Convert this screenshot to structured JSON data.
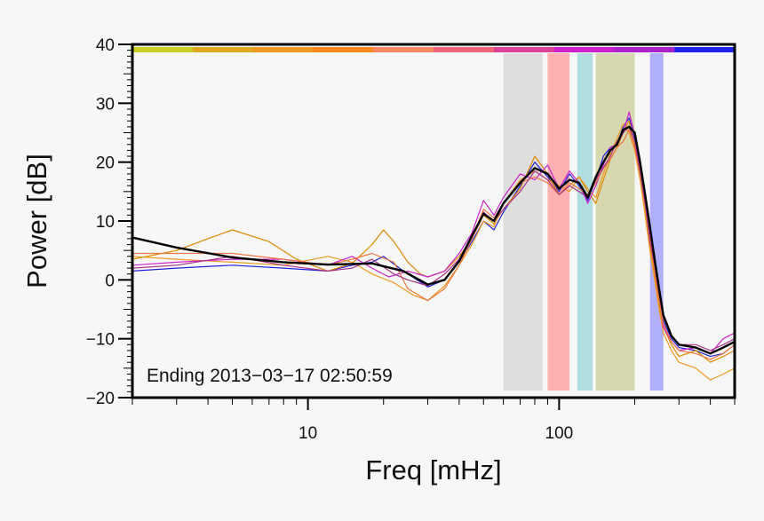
{
  "chart_data": {
    "type": "line",
    "xlabel": "Freq [mHz]",
    "ylabel": "Power [dB]",
    "xscale": "log",
    "xlim": [
      2,
      500
    ],
    "ylim": [
      -20,
      40
    ],
    "xticks": [
      10,
      100
    ],
    "xtick_labels": [
      "10",
      "100"
    ],
    "yticks": [
      -20,
      -10,
      0,
      10,
      20,
      30,
      40
    ],
    "ytick_labels": [
      "−20",
      "−10",
      "0",
      "10",
      "20",
      "30",
      "40"
    ],
    "grid": false,
    "annotation": "Ending 2013−03−17 02:50:59",
    "top_band_colors": [
      "#cccc22",
      "#ddaa22",
      "#ee9922",
      "#ff8822",
      "#ff8866",
      "#ee6677",
      "#dd4499",
      "#cc22cc",
      "#aa22cc",
      "#2222ee"
    ],
    "shaded_bands": [
      {
        "from": 60,
        "to": 86,
        "color": "#dedede"
      },
      {
        "from": 90,
        "to": 110,
        "color": "#ffb0b0"
      },
      {
        "from": 118,
        "to": 136,
        "color": "#b0dde0"
      },
      {
        "from": 140,
        "to": 200,
        "color": "#d8d8b0"
      },
      {
        "from": 230,
        "to": 260,
        "color": "#b0b0ff"
      }
    ],
    "series": [
      {
        "color": "#000000",
        "width": 2.4,
        "x": [
          2,
          3,
          5,
          8,
          12,
          18,
          24,
          30,
          35,
          40,
          45,
          50,
          55,
          60,
          70,
          80,
          90,
          100,
          110,
          120,
          130,
          140,
          150,
          160,
          170,
          180,
          190,
          200,
          210,
          220,
          230,
          240,
          250,
          260,
          280,
          300,
          350,
          400,
          450,
          500
        ],
        "y": [
          7.2,
          5.5,
          3.8,
          3,
          2.6,
          2.8,
          1.5,
          -0.8,
          0,
          3.2,
          7.5,
          11.2,
          10,
          13,
          16.5,
          19,
          18,
          15.5,
          17,
          16.5,
          14,
          17.5,
          20,
          22,
          23,
          25.5,
          26,
          25,
          20,
          14.5,
          9,
          3.5,
          -1.5,
          -6,
          -9.5,
          -11,
          -11.5,
          -12.5,
          -11.5,
          -10.5
        ]
      },
      {
        "color": "#2222dd",
        "width": 1.2,
        "x": [
          2,
          3,
          5,
          8,
          12,
          15,
          18,
          20,
          24,
          30,
          35,
          40,
          45,
          50,
          55,
          60,
          70,
          80,
          90,
          100,
          110,
          120,
          130,
          140,
          150,
          160,
          170,
          180,
          190,
          200,
          210,
          220,
          230,
          240,
          250,
          260,
          280,
          300,
          350,
          400,
          450,
          500
        ],
        "y": [
          1.5,
          2,
          2.5,
          2,
          1.5,
          2.5,
          3,
          4,
          1.5,
          -1.2,
          0,
          3,
          6.5,
          10,
          8.5,
          11.5,
          16,
          20,
          17.5,
          15,
          18,
          16,
          13.5,
          17,
          21,
          22.5,
          23,
          26,
          27.5,
          24,
          19,
          14,
          8,
          3,
          -2,
          -7,
          -10,
          -11.5,
          -12,
          -13,
          -12.5,
          -11
        ]
      },
      {
        "color": "#dd8800",
        "width": 1.2,
        "x": [
          2,
          3,
          4,
          5,
          7,
          9,
          12,
          15,
          18,
          20,
          22,
          25,
          28,
          30,
          35,
          40,
          45,
          50,
          55,
          60,
          70,
          80,
          90,
          100,
          110,
          120,
          130,
          140,
          150,
          160,
          170,
          180,
          190,
          200,
          210,
          220,
          230,
          240,
          250,
          260,
          280,
          300,
          350,
          400,
          450,
          500
        ],
        "y": [
          3.5,
          5,
          7,
          8.5,
          6.5,
          3.5,
          1.5,
          2.8,
          6,
          8.5,
          6.5,
          3,
          1,
          0.5,
          1.5,
          4,
          7,
          11,
          9.5,
          12,
          15.5,
          21,
          18,
          14.5,
          16,
          17.5,
          15,
          13,
          17,
          20.5,
          22.5,
          25,
          27,
          23,
          18,
          12.5,
          6,
          1,
          -4,
          -8,
          -11,
          -13,
          -12,
          -14,
          -13,
          -12
        ]
      },
      {
        "color": "#ee9922",
        "width": 1.2,
        "x": [
          2,
          3,
          5,
          8,
          12,
          15,
          18,
          22,
          26,
          30,
          35,
          40,
          45,
          50,
          55,
          60,
          70,
          80,
          90,
          100,
          110,
          120,
          130,
          140,
          150,
          160,
          170,
          180,
          190,
          200,
          210,
          220,
          230,
          240,
          250,
          260,
          280,
          300,
          350,
          400,
          450,
          500
        ],
        "y": [
          4,
          3.5,
          3,
          2.5,
          4,
          3,
          1,
          -0.5,
          -2.5,
          -3.5,
          -1,
          2.5,
          6,
          10,
          9,
          13,
          17,
          18.5,
          17,
          16,
          15,
          17.5,
          15.5,
          14,
          18,
          21.5,
          24,
          26.5,
          25,
          22,
          17,
          11,
          5,
          0,
          -5,
          -9,
          -12,
          -14,
          -15,
          -17,
          -16,
          -15
        ]
      },
      {
        "color": "#cc22cc",
        "width": 1.2,
        "x": [
          2,
          3,
          5,
          8,
          12,
          15,
          18,
          21,
          25,
          30,
          35,
          40,
          45,
          50,
          55,
          60,
          70,
          80,
          90,
          100,
          110,
          120,
          130,
          140,
          150,
          160,
          170,
          180,
          190,
          200,
          210,
          220,
          230,
          240,
          250,
          260,
          280,
          300,
          350,
          400,
          450,
          500
        ],
        "y": [
          2.5,
          3,
          3.5,
          3.5,
          2.5,
          4,
          2,
          0.5,
          1.5,
          0.5,
          1.5,
          4.5,
          8,
          13.5,
          11,
          14,
          18,
          17,
          19.5,
          15.5,
          18.5,
          16.5,
          13,
          16,
          19.5,
          22.5,
          23,
          25,
          28.5,
          24.5,
          20,
          13.5,
          7.5,
          2,
          -3,
          -8,
          -10.5,
          -12,
          -11.5,
          -12.5,
          -10,
          -9
        ]
      },
      {
        "color": "#ee7744",
        "width": 1.2,
        "x": [
          2,
          3,
          5,
          8,
          12,
          15,
          18,
          22,
          25,
          30,
          35,
          40,
          45,
          50,
          55,
          60,
          70,
          80,
          90,
          100,
          110,
          120,
          130,
          140,
          150,
          160,
          170,
          180,
          190,
          200,
          210,
          220,
          230,
          240,
          250,
          260,
          280,
          300,
          350,
          400,
          450,
          500
        ],
        "y": [
          4.5,
          4.5,
          4.5,
          3.5,
          2.5,
          3.5,
          4.5,
          3,
          -1.5,
          -3.5,
          -1.5,
          2.5,
          7,
          12,
          10.5,
          13,
          16.5,
          17.5,
          16.5,
          14.5,
          16.5,
          15.5,
          14.5,
          16.5,
          19,
          20.5,
          22.5,
          23.5,
          25.5,
          22.5,
          18,
          12.5,
          7,
          1.5,
          -3.5,
          -7.5,
          -10.5,
          -12,
          -12.5,
          -13.5,
          -12.5,
          -11
        ]
      },
      {
        "color": "#aa3388",
        "width": 1.2,
        "x": [
          2,
          3,
          5,
          8,
          12,
          15,
          18,
          22,
          25,
          30,
          35,
          40,
          45,
          50,
          55,
          60,
          70,
          80,
          90,
          100,
          110,
          120,
          130,
          140,
          150,
          160,
          170,
          180,
          190,
          200,
          210,
          220,
          230,
          240,
          250,
          260,
          280,
          300,
          350,
          400,
          450,
          500
        ],
        "y": [
          2,
          2.5,
          4,
          2.5,
          1.5,
          2,
          3.5,
          1,
          0,
          -1,
          1,
          3.5,
          7.5,
          11.5,
          10,
          12,
          15,
          18.5,
          17,
          14.5,
          16,
          15,
          14,
          17,
          19,
          21,
          23.5,
          25,
          26,
          23.5,
          18.5,
          13,
          6.5,
          2.5,
          -2.5,
          -6.5,
          -9.5,
          -11,
          -11,
          -12,
          -11,
          -10
        ]
      }
    ]
  }
}
